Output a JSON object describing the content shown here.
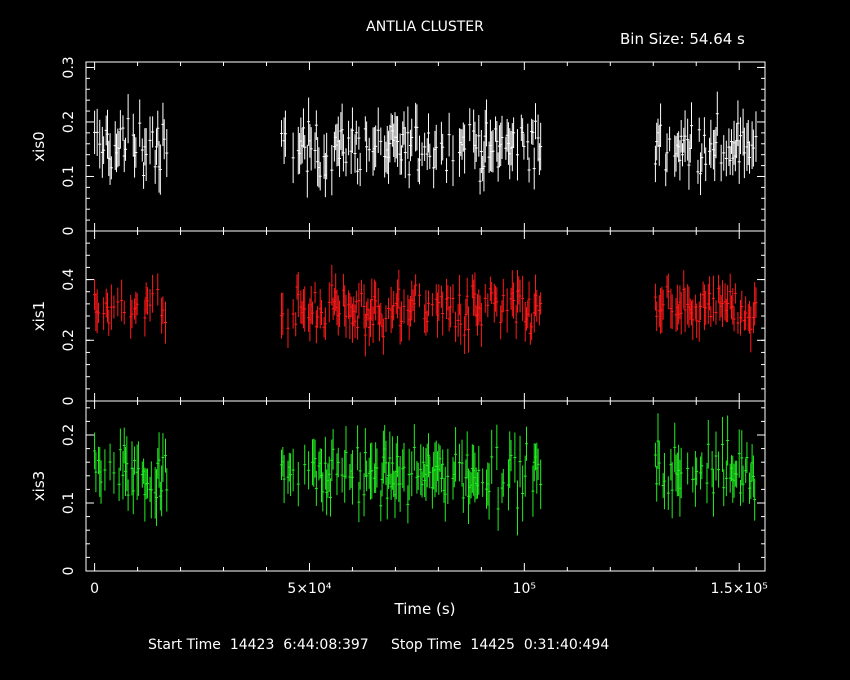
{
  "title": "ANTLIA CLUSTER",
  "bin_size_text": "Bin Size: 54.64 s",
  "xlabel": "Time (s)",
  "start_time_label": "Start Time",
  "start_time_value": "14423  6:44:08:397",
  "stop_time_label": "Stop Time",
  "stop_time_value": "14425  0:31:40:494",
  "chart_data": {
    "type": "scatter",
    "style": "light curve with error bars (stacked panels, shared x axis)",
    "xlim": [
      -2000,
      156000
    ],
    "x_ticks": [
      {
        "value": 0,
        "label": "0"
      },
      {
        "value": 50000,
        "label": "5×10⁴"
      },
      {
        "value": 100000,
        "label": "10⁵"
      },
      {
        "value": 150000,
        "label": "1.5×10⁵"
      }
    ],
    "observation_segments_s": [
      [
        0,
        17000
      ],
      [
        43500,
        104000
      ],
      [
        130500,
        154000
      ]
    ],
    "panels": [
      {
        "ylabel": "xis0",
        "color": "#ffffff",
        "ylim": [
          0,
          0.31
        ],
        "y_ticks": [
          {
            "value": 0,
            "label": "0"
          },
          {
            "value": 0.1,
            "label": "0.1"
          },
          {
            "value": 0.2,
            "label": "0.2"
          },
          {
            "value": 0.3,
            "label": "0.3"
          }
        ],
        "typical_rate": 0.155,
        "typical_error": 0.035
      },
      {
        "ylabel": "xis1",
        "color": "#ff1a1a",
        "ylim": [
          0,
          0.56
        ],
        "y_ticks": [
          {
            "value": 0,
            "label": "0"
          },
          {
            "value": 0.2,
            "label": "0.2"
          },
          {
            "value": 0.4,
            "label": "0.4"
          }
        ],
        "typical_rate": 0.3,
        "typical_error": 0.055
      },
      {
        "ylabel": "xis3",
        "color": "#22ee22",
        "ylim": [
          0,
          0.25
        ],
        "y_ticks": [
          {
            "value": 0,
            "label": "0"
          },
          {
            "value": 0.1,
            "label": "0.1"
          },
          {
            "value": 0.2,
            "label": "0.2"
          }
        ],
        "typical_rate": 0.145,
        "typical_error": 0.03
      }
    ]
  }
}
